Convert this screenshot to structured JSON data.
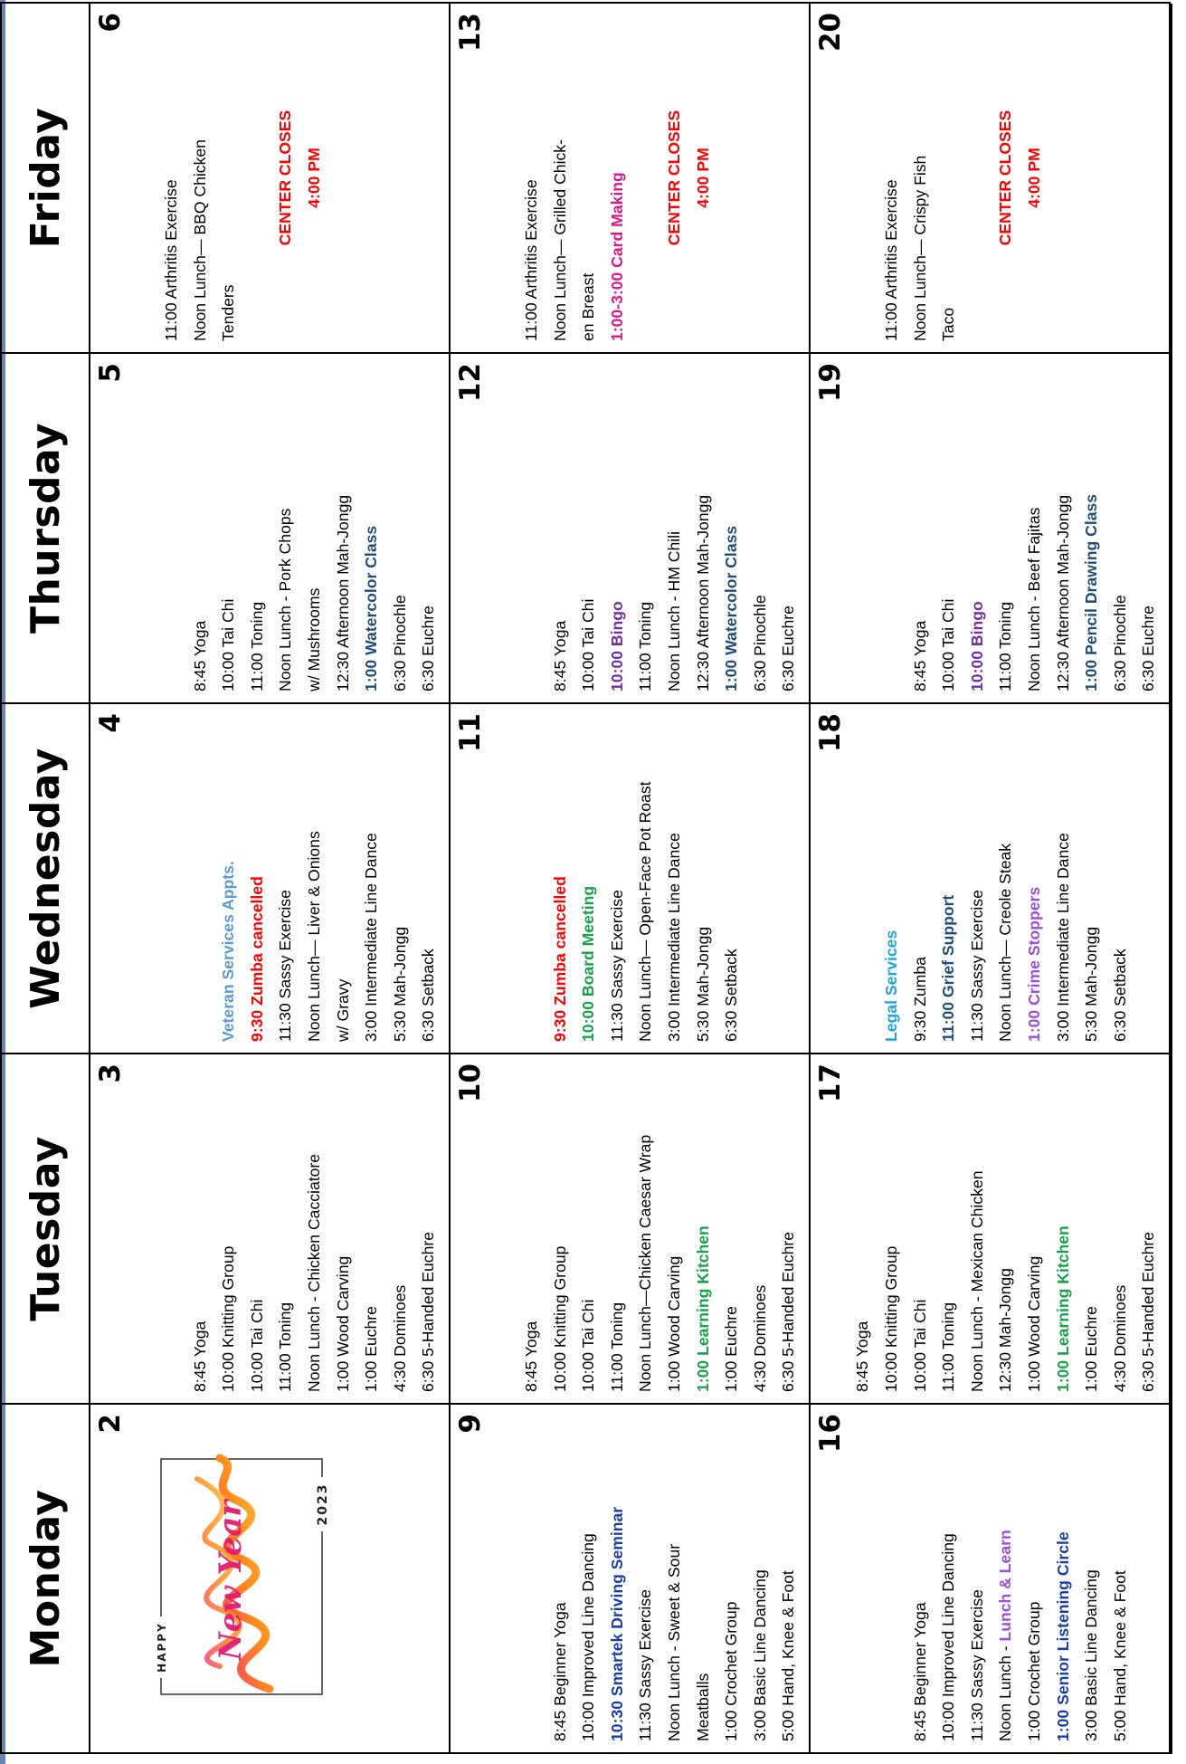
{
  "colors": {
    "blue_dark": "#1f4e79",
    "blue_light": "#5b9bd5",
    "cyan": "#1aa7e0",
    "red": "#ff0000",
    "green": "#16a34a",
    "purple": "#7030a0",
    "violet": "#9b4de0",
    "magenta": "#e0158a",
    "navy": "#1a3ea8"
  },
  "header": {
    "days": [
      "Monday",
      "Tuesday",
      "Wednesday",
      "Thursday",
      "Friday"
    ]
  },
  "new_year_graphic": {
    "happy": "HAPPY",
    "script": "New Year",
    "year": "2023"
  },
  "weeks": [
    {
      "days": [
        {
          "num": "2",
          "events": [],
          "has_new_year": true
        },
        {
          "num": "3",
          "events": [
            {
              "text": "8:45 Yoga"
            },
            {
              "text": "10:00 Knitting Group"
            },
            {
              "text": "10:00 Tai Chi"
            },
            {
              "text": "11:00 Toning"
            },
            {
              "text": "Noon Lunch - Chicken Cacciatore"
            },
            {
              "text": "1:00 Wood Carving"
            },
            {
              "text": "1:00 Euchre"
            },
            {
              "text": "4:30  Dominoes"
            },
            {
              "text": "6:30 5-Handed Euchre"
            }
          ]
        },
        {
          "num": "4",
          "events": [
            {
              "text": "Veteran Services Appts.",
              "bold": true,
              "color": "#5b9bd5"
            },
            {
              "text": "9:30 Zumba cancelled",
              "bold": true,
              "color": "#ff0000"
            },
            {
              "text": "11:30 Sassy Exercise"
            },
            {
              "text": "Noon Lunch— Liver & Onions"
            },
            {
              "text": "w/ Gravy"
            },
            {
              "text": "3:00 Intermediate Line Dance"
            },
            {
              "text": "5:30 Mah-Jongg"
            },
            {
              "text": "6:30 Setback"
            }
          ]
        },
        {
          "num": "5",
          "events": [
            {
              "text": "8:45  Yoga"
            },
            {
              "text": "10:00 Tai Chi"
            },
            {
              "text": "11:00 Toning"
            },
            {
              "text": "Noon Lunch - Pork Chops"
            },
            {
              "text": "w/ Mushrooms"
            },
            {
              "text": "12:30 Afternoon Mah-Jongg"
            },
            {
              "text": "1:00 Watercolor Class",
              "bold": true,
              "color": "#1f4e79"
            },
            {
              "text": "6:30 Pinochle"
            },
            {
              "text": "6:30 Euchre"
            }
          ]
        },
        {
          "num": "6",
          "events": [
            {
              "text": "11:00 Arthritis Exercise"
            },
            {
              "text": "Noon Lunch— BBQ Chicken"
            },
            {
              "text": "Tenders"
            },
            {
              "text": "",
              "gap": true
            },
            {
              "text": "CENTER CLOSES",
              "bold": true,
              "color": "#ff0000",
              "center": true
            },
            {
              "text": "4:00 PM",
              "bold": true,
              "color": "#ff0000",
              "center": true
            },
            {
              "text": "",
              "gap": true
            },
            {
              "text": "",
              "gap": true
            },
            {
              "text": "",
              "gap": true
            },
            {
              "text": "",
              "gap": true
            }
          ]
        }
      ]
    },
    {
      "days": [
        {
          "num": "9",
          "events": [
            {
              "text": "8:45 Beginner Yoga"
            },
            {
              "text": "10:00 Improved Line Dancing"
            },
            {
              "text": "10:30 Smartek Driving Seminar",
              "bold": true,
              "color": "#1a3ea8"
            },
            {
              "text": "11:30 Sassy Exercise"
            },
            {
              "text": "Noon Lunch - Sweet & Sour"
            },
            {
              "text": "Meatballs"
            },
            {
              "text": "1:00 Crochet Group"
            },
            {
              "text": "3:00 Basic Line Dancing"
            },
            {
              "text": "5:00 Hand, Knee & Foot"
            }
          ]
        },
        {
          "num": "10",
          "events": [
            {
              "text": "8:45 Yoga"
            },
            {
              "text": "10:00 Knitting Group"
            },
            {
              "text": "10:00 Tai Chi"
            },
            {
              "text": "11:00 Toning"
            },
            {
              "text": "Noon Lunch—Chicken Caesar Wrap"
            },
            {
              "text": "1:00 Wood Carving"
            },
            {
              "text": "1:00 Learning Kitchen",
              "bold": true,
              "color": "#16a34a"
            },
            {
              "text": "1:00 Euchre"
            },
            {
              "text": "4:30  Dominoes"
            },
            {
              "text": "6:30 5-Handed Euchre"
            }
          ]
        },
        {
          "num": "11",
          "events": [
            {
              "text": "9:30 Zumba cancelled",
              "bold": true,
              "color": "#ff0000"
            },
            {
              "text": "10:00 Board Meeting",
              "bold": true,
              "color": "#16a34a"
            },
            {
              "text": "11:30 Sassy Exercise"
            },
            {
              "text": "Noon Lunch— Open-Face Pot Roast"
            },
            {
              "text": "3:00 Intermediate Line Dance"
            },
            {
              "text": "5:30 Mah-Jongg"
            },
            {
              "text": "6:30 Setback"
            },
            {
              "text": "",
              "gap": true
            },
            {
              "text": "",
              "gap": true
            }
          ]
        },
        {
          "num": "12",
          "events": [
            {
              "text": "8:45  Yoga"
            },
            {
              "text": "10:00 Tai Chi"
            },
            {
              "text": "10:00 Bingo",
              "bold": true,
              "color": "#7030a0"
            },
            {
              "text": "11:00 Toning"
            },
            {
              "text": "Noon Lunch - HM Chili"
            },
            {
              "text": "12:30 Afternoon Mah-Jongg"
            },
            {
              "text": "1:00 Watercolor Class",
              "bold": true,
              "color": "#1f4e79"
            },
            {
              "text": "6:30 Pinochle"
            },
            {
              "text": "6:30 Euchre"
            }
          ]
        },
        {
          "num": "13",
          "events": [
            {
              "text": "11:00 Arthritis Exercise"
            },
            {
              "text": "Noon Lunch— Grilled Chick-"
            },
            {
              "text": "en Breast"
            },
            {
              "text": "1:00-3:00 Card Making",
              "bold": true,
              "color": "#e0158a"
            },
            {
              "text": "",
              "gap": true
            },
            {
              "text": "CENTER CLOSES",
              "bold": true,
              "color": "#ff0000",
              "center": true
            },
            {
              "text": "4:00 PM",
              "bold": true,
              "color": "#ff0000",
              "center": true
            },
            {
              "text": "",
              "gap": true
            },
            {
              "text": "",
              "gap": true
            },
            {
              "text": "",
              "gap": true
            }
          ]
        }
      ]
    },
    {
      "days": [
        {
          "num": "16",
          "events": [
            {
              "text": "8:45 Beginner Yoga"
            },
            {
              "text": "10:00 Improved Line Dancing"
            },
            {
              "text": "11:30 Sassy Exercise"
            },
            {
              "text": "Noon Lunch - ",
              "suffix": "Lunch & Learn",
              "suffix_color": "#9b4de0"
            },
            {
              "text": "1:00 Crochet Group"
            },
            {
              "text": "1:00 Senior Listening Circle",
              "bold": true,
              "color": "#1a3ea8"
            },
            {
              "text": "3:00 Basic Line Dancing"
            },
            {
              "text": "5:00 Hand, Knee & Foot"
            },
            {
              "text": "",
              "gap": true
            }
          ]
        },
        {
          "num": "17",
          "events": [
            {
              "text": "8:45 Yoga"
            },
            {
              "text": "10:00 Knitting Group"
            },
            {
              "text": "10:00 Tai Chi"
            },
            {
              "text": "11:00 Toning"
            },
            {
              "text": "Noon Lunch -  Mexican Chicken"
            },
            {
              "text": "12:30 Mah-Jongg"
            },
            {
              "text": "1:00 Wood Carving"
            },
            {
              "text": "1:00 Learning Kitchen",
              "bold": true,
              "color": "#16a34a"
            },
            {
              "text": "1:00 Euchre"
            },
            {
              "text": "4:30  Dominoes"
            },
            {
              "text": "6:30 5-Handed Euchre"
            }
          ]
        },
        {
          "num": "18",
          "events": [
            {
              "text": "Legal Services",
              "bold": true,
              "color": "#1aa7e0"
            },
            {
              "text": "9:30 Zumba"
            },
            {
              "text": "11:00 Grief Support",
              "bold": true,
              "color": "#1f4e79"
            },
            {
              "text": "11:30 Sassy Exercise"
            },
            {
              "text": "Noon Lunch— Creole Steak"
            },
            {
              "text": "1:00 Crime Stoppers",
              "bold": true,
              "color": "#9b4de0"
            },
            {
              "text": "3:00 Intermediate Line Dance"
            },
            {
              "text": "5:30 Mah-Jongg"
            },
            {
              "text": "6:30 Setback"
            },
            {
              "text": "",
              "gap": true
            }
          ]
        },
        {
          "num": "19",
          "events": [
            {
              "text": "8:45  Yoga"
            },
            {
              "text": "10:00 Tai Chi"
            },
            {
              "text": "10:00 Bingo",
              "bold": true,
              "color": "#7030a0"
            },
            {
              "text": "11:00 Toning"
            },
            {
              "text": "Noon Lunch - Beef Fajitas"
            },
            {
              "text": "12:30 Afternoon Mah-Jongg"
            },
            {
              "text": "1:00 Pencil Drawing Class",
              "bold": true,
              "color": "#1f4e79"
            },
            {
              "text": "6:30 Pinochle"
            },
            {
              "text": "6:30 Euchre"
            }
          ]
        },
        {
          "num": "20",
          "events": [
            {
              "text": "11:00 Arthritis Exercise"
            },
            {
              "text": "Noon Lunch— Crispy Fish"
            },
            {
              "text": "Taco"
            },
            {
              "text": "",
              "gap": true
            },
            {
              "text": "CENTER CLOSES",
              "bold": true,
              "color": "#ff0000",
              "center": true
            },
            {
              "text": "4:00 PM",
              "bold": true,
              "color": "#ff0000",
              "center": true
            },
            {
              "text": "",
              "gap": true
            },
            {
              "text": "",
              "gap": true
            },
            {
              "text": "",
              "gap": true
            },
            {
              "text": "",
              "gap": true
            }
          ]
        }
      ]
    }
  ]
}
